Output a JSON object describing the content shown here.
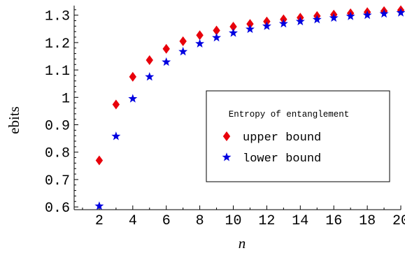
{
  "chart_data": {
    "type": "scatter",
    "xlabel": "n",
    "ylabel": "ebits",
    "xlim": [
      0.5,
      20
    ],
    "ylim": [
      0.59,
      1.335
    ],
    "x_ticks": [
      2,
      4,
      6,
      8,
      10,
      12,
      14,
      16,
      18,
      20
    ],
    "x_tick_labels": [
      "2",
      "4",
      "6",
      "8",
      "10",
      "12",
      "14",
      "16",
      "18",
      "20"
    ],
    "y_ticks": [
      0.6,
      0.7,
      0.8,
      0.9,
      1.0,
      1.1,
      1.2,
      1.3
    ],
    "y_tick_labels": [
      "0.6",
      "0.7",
      "0.8",
      "0.9",
      "1",
      "1.1",
      "1.2",
      "1.3"
    ],
    "grid": false,
    "legend": {
      "title": "Entropy of entanglement",
      "placement": "center-right"
    },
    "series": [
      {
        "name": "upper bound",
        "marker": "diamond",
        "color": "#e8000b",
        "x": [
          2,
          3,
          4,
          5,
          6,
          7,
          8,
          9,
          10,
          11,
          12,
          13,
          14,
          15,
          16,
          17,
          18,
          19,
          20
        ],
        "y": [
          0.77,
          0.974,
          1.075,
          1.136,
          1.177,
          1.205,
          1.227,
          1.244,
          1.258,
          1.268,
          1.277,
          1.285,
          1.291,
          1.297,
          1.302,
          1.307,
          1.311,
          1.315,
          1.318
        ]
      },
      {
        "name": "lower bound",
        "marker": "star",
        "color": "#0000e0",
        "x": [
          2,
          3,
          4,
          5,
          6,
          7,
          8,
          9,
          10,
          11,
          12,
          13,
          14,
          15,
          16,
          17,
          18,
          19,
          20
        ],
        "y": [
          0.603,
          0.858,
          0.995,
          1.075,
          1.129,
          1.167,
          1.196,
          1.218,
          1.235,
          1.249,
          1.26,
          1.269,
          1.277,
          1.284,
          1.29,
          1.296,
          1.3,
          1.305,
          1.309
        ]
      }
    ]
  }
}
